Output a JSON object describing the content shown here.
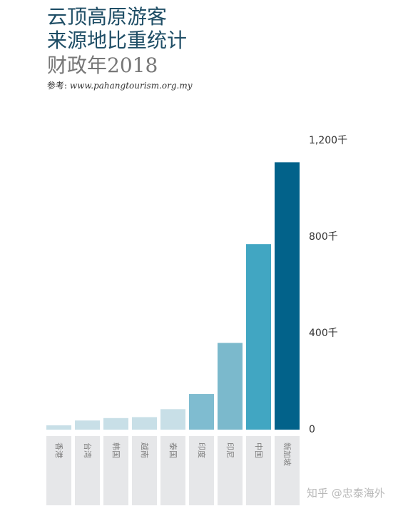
{
  "header": {
    "title_line1": "云顶高原游客",
    "title_line2": "来源地比重统计",
    "title_line3": "财政年2018",
    "reference_label": "参考:",
    "reference_url": "www.pahangtourism.org.my"
  },
  "watermark": "知乎 @忠泰海外",
  "chart_data": {
    "type": "bar",
    "title": "云顶高原游客 来源地比重统计 财政年2018",
    "categories": [
      "香港",
      "台湾",
      "韩国",
      "越南",
      "泰国",
      "印度",
      "印尼",
      "中国",
      "新加坡"
    ],
    "values": [
      18,
      38,
      48,
      52,
      85,
      148,
      360,
      770,
      1110
    ],
    "colors": [
      "#c8dfe7",
      "#c8dfe7",
      "#c8dfe7",
      "#c8dfe7",
      "#c8dfe7",
      "#7fbcd0",
      "#7bb9cc",
      "#41a6c2",
      "#02628a"
    ],
    "ylim": [
      0,
      1200
    ],
    "yticks": [
      0,
      400,
      800,
      1200
    ],
    "ytick_labels": [
      "0",
      "400千",
      "800千",
      "1,200千"
    ],
    "ylabel": "",
    "xlabel": "",
    "grid": false,
    "y_axis_position": "right"
  }
}
